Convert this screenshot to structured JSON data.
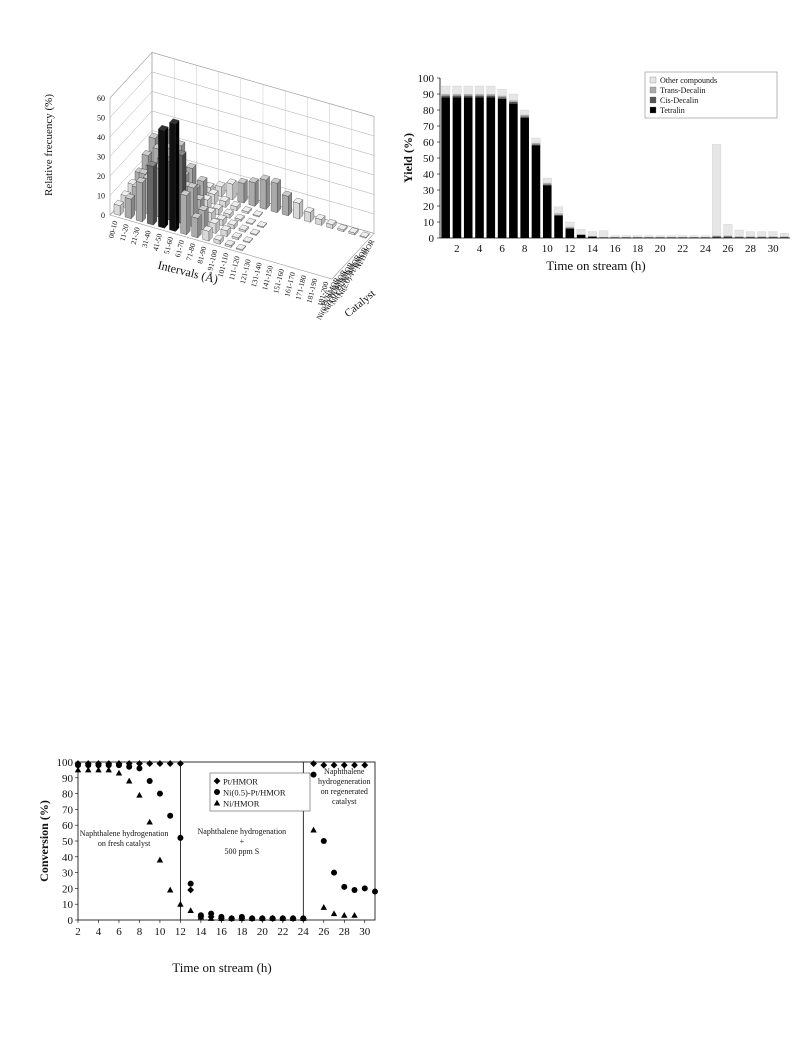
{
  "chart_data": [
    {
      "type": "bar3d",
      "ylabel": "Relative frecuency (%)",
      "xlabel": "Intervals (Å)",
      "zlabel": "Catalyst",
      "zlim": [
        0,
        60
      ],
      "zticks": [
        0,
        10,
        20,
        30,
        40,
        50,
        60
      ],
      "categories": [
        "00-10",
        "11-20",
        "21-30",
        "31-40",
        "41-50",
        "51-60",
        "61-70",
        "71-80",
        "81-90",
        "91-100",
        "101-110",
        "111-120",
        "121-130",
        "131-140",
        "141-150",
        "151-160",
        "161-170",
        "171-180",
        "181-190",
        "191-200"
      ],
      "catalysts": [
        "Pt/HMOR",
        "Ni(0.5)-Pt/HMOR",
        "Ni(1.0)-Pt/HMOR",
        "Ni(1.5)-Pt/HMOR",
        "Ni(2.0)-Pt/HMOR",
        "Ni/HMOR"
      ],
      "series": [
        {
          "name": "Pt/HMOR",
          "values": [
            5,
            10,
            20,
            30,
            50,
            55,
            20,
            10,
            5,
            2,
            1,
            0.5,
            0,
            0,
            0,
            0,
            0,
            0,
            0,
            0
          ]
        },
        {
          "name": "Ni(0.5)-Pt/HMOR",
          "values": [
            6,
            12,
            18,
            25,
            30,
            35,
            20,
            10,
            5,
            3,
            1,
            0.5,
            0,
            0,
            0,
            0,
            0,
            0,
            0,
            0
          ]
        },
        {
          "name": "Ni(1.0)-Pt/HMOR",
          "values": [
            8,
            15,
            20,
            25,
            28,
            15,
            10,
            5,
            3,
            2,
            1,
            0.5,
            0,
            0,
            0,
            0,
            0,
            0,
            0,
            0
          ]
        },
        {
          "name": "Ni(1.5)-Pt/HMOR",
          "values": [
            10,
            15,
            20,
            22,
            15,
            10,
            6,
            3,
            2,
            1,
            0.5,
            0.5,
            0,
            0,
            0,
            0,
            0,
            0,
            0,
            0
          ]
        },
        {
          "name": "Ni(2.0)-Pt/HMOR",
          "values": [
            15,
            20,
            22,
            25,
            15,
            10,
            5,
            3,
            2,
            1,
            0.5,
            0,
            0,
            0,
            0,
            0,
            0,
            0,
            0,
            0
          ]
        },
        {
          "name": "Ni/HMOR",
          "values": [
            20,
            25,
            20,
            2,
            2,
            3,
            5,
            8,
            10,
            12,
            15,
            15,
            10,
            8,
            5,
            3,
            2,
            1,
            1,
            0.5
          ]
        }
      ]
    },
    {
      "type": "bar",
      "stacked": true,
      "ylabel": "Yield (%)",
      "xlabel": "Time on stream (h)",
      "ylim": [
        0,
        100
      ],
      "yticks": [
        0,
        10,
        20,
        30,
        40,
        50,
        60,
        70,
        80,
        90,
        100
      ],
      "xticks": [
        2,
        4,
        6,
        8,
        10,
        12,
        14,
        16,
        18,
        20,
        22,
        24,
        26,
        28,
        30
      ],
      "categories": [
        1,
        2,
        3,
        4,
        5,
        6,
        7,
        8,
        9,
        10,
        11,
        12,
        13,
        14,
        15,
        16,
        17,
        18,
        19,
        20,
        21,
        22,
        23,
        24,
        25,
        26,
        27,
        28,
        29,
        30,
        31
      ],
      "legend_position": "top-right",
      "series": [
        {
          "name": "Tetralin",
          "color": "#000000",
          "values": [
            88,
            88,
            88,
            88,
            88,
            87,
            84,
            75,
            58,
            33,
            14,
            6,
            2,
            1,
            0.5,
            0.5,
            0.5,
            0.5,
            0.5,
            0.5,
            0.5,
            0.5,
            0.5,
            0.5,
            0.5,
            0.5,
            0.5,
            0.5,
            0.5,
            0.5,
            0.5
          ]
        },
        {
          "name": "Cis-Decalin",
          "color": "#555555",
          "values": [
            1,
            1,
            1,
            1,
            1,
            1,
            1,
            1,
            0.5,
            0.5,
            0.5,
            0,
            0,
            0,
            0,
            0,
            0,
            0,
            0,
            0,
            0,
            0,
            0,
            0,
            0.5,
            0.5,
            0,
            0,
            0,
            0,
            0
          ]
        },
        {
          "name": "Trans-Decalin",
          "color": "#aaaaaa",
          "values": [
            1,
            1,
            1,
            1,
            1,
            1,
            1,
            1,
            1,
            1,
            1,
            1,
            0.5,
            0,
            0,
            0,
            0,
            0,
            0,
            0,
            0,
            0,
            0,
            0,
            0.5,
            0.5,
            0.5,
            0.5,
            0.5,
            0.5,
            0.5
          ]
        },
        {
          "name": "Other compounds",
          "color": "#e6e6e6",
          "values": [
            5,
            5,
            5,
            5,
            5,
            4,
            4,
            3,
            3,
            3,
            4,
            3,
            3,
            3,
            4,
            1,
            1,
            1,
            1,
            1,
            1,
            1,
            1,
            1,
            57,
            7,
            4,
            3,
            3,
            3,
            2
          ]
        }
      ]
    },
    {
      "type": "scatter",
      "ylabel": "Conversion (%)",
      "xlabel": "Time on stream (h)",
      "xlim": [
        2,
        31
      ],
      "ylim": [
        0,
        100
      ],
      "xticks": [
        2,
        4,
        6,
        8,
        10,
        12,
        14,
        16,
        18,
        20,
        22,
        24,
        26,
        28,
        30
      ],
      "yticks": [
        0,
        10,
        20,
        30,
        40,
        50,
        60,
        70,
        80,
        90,
        100
      ],
      "vlines": [
        12,
        24
      ],
      "annotations": [
        {
          "text": [
            "Naphthalene hydrogenation",
            "on fresh catalyst"
          ],
          "x": 6.5,
          "y": 50
        },
        {
          "text": [
            "Naphthalene hydrogenation",
            "+",
            "500 ppm S"
          ],
          "x": 18,
          "y": 48
        },
        {
          "text": [
            "Naphthalene",
            "hydrogeneration",
            "on regenerated",
            "catalyst"
          ],
          "x": 28,
          "y": 83
        }
      ],
      "series": [
        {
          "name": "Pt/HMOR",
          "marker": "diamond",
          "x": [
            2,
            3,
            4,
            5,
            6,
            7,
            8,
            9,
            10,
            11,
            12,
            13,
            14,
            15,
            16,
            17,
            18,
            19,
            20,
            21,
            22,
            23,
            24,
            25,
            26,
            27,
            28,
            29,
            30
          ],
          "y": [
            99,
            99,
            99,
            99,
            99,
            99,
            99,
            99,
            99,
            99,
            99,
            19,
            2,
            2,
            1,
            1,
            1,
            1,
            1,
            1,
            1,
            1,
            1,
            99,
            98,
            98,
            98,
            98,
            98
          ]
        },
        {
          "name": "Ni(0.5)-Pt/HMOR",
          "marker": "circle",
          "x": [
            2,
            3,
            4,
            5,
            6,
            7,
            8,
            9,
            10,
            11,
            12,
            13,
            14,
            15,
            16,
            17,
            18,
            19,
            20,
            21,
            22,
            23,
            24,
            25,
            26,
            27,
            28,
            29,
            30,
            31
          ],
          "y": [
            98,
            98,
            98,
            98,
            98,
            97,
            96,
            88,
            80,
            66,
            52,
            23,
            3,
            4,
            2,
            1,
            2,
            1,
            1,
            1,
            1,
            1,
            1,
            92,
            50,
            30,
            21,
            19,
            20,
            18
          ]
        },
        {
          "name": "Ni/HMOR",
          "marker": "triangle",
          "x": [
            2,
            3,
            4,
            5,
            6,
            7,
            8,
            9,
            10,
            11,
            12,
            13,
            14,
            15,
            16,
            17,
            18,
            19,
            20,
            21,
            22,
            23,
            24,
            25,
            26,
            27,
            28,
            29
          ],
          "y": [
            95,
            95,
            95,
            95,
            93,
            88,
            79,
            62,
            38,
            19,
            10,
            6,
            2,
            1,
            1,
            1,
            1,
            1,
            1,
            1,
            1,
            1,
            1,
            57,
            8,
            4,
            3,
            3
          ]
        }
      ]
    }
  ]
}
